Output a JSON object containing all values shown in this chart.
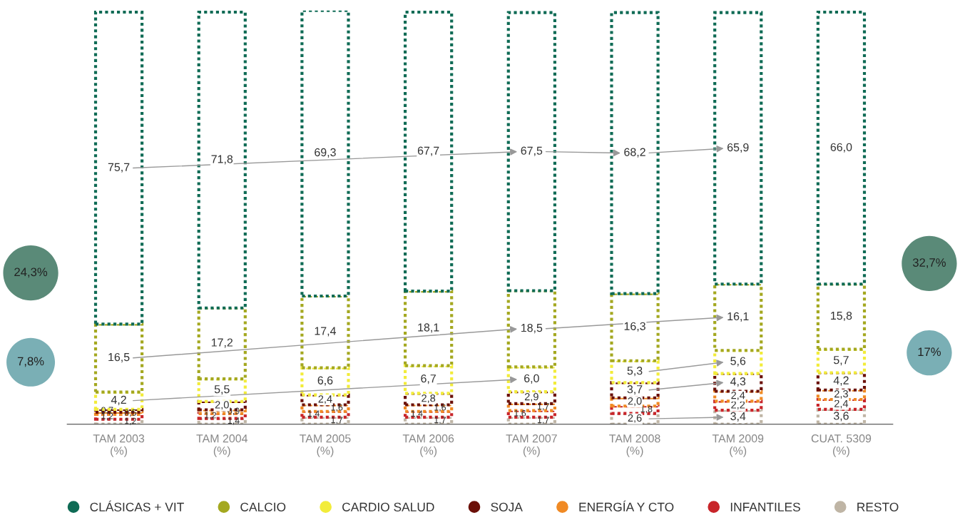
{
  "chart_data": {
    "type": "bar",
    "stacked": true,
    "legend": "bottom",
    "grid": false,
    "categories": [
      "TAM 2003\n(%)",
      "TAM 2004\n(%)",
      "TAM 2005\n(%)",
      "TAM 2006\n(%)",
      "TAM 2007\n(%)",
      "TAM 2008\n(%)",
      "TAM 2009\n(%)",
      "CUAT. 5309\n(%)"
    ],
    "series": [
      {
        "name": "RESTO",
        "color": "#bfb5a5",
        "values": [
          1.2,
          1.4,
          1.7,
          1.7,
          1.7,
          2.6,
          3.4,
          3.6
        ],
        "value_labels": [
          "1,2",
          "1,4",
          "1,7",
          "1,7",
          "1,7",
          "2,6",
          "3,4",
          "3,6"
        ]
      },
      {
        "name": "INFANTILES",
        "color": "#c8252a",
        "values": [
          1.2,
          1.2,
          1.4,
          1.4,
          1.6,
          1.8,
          2.2,
          2.4
        ],
        "value_labels": [
          "1,2",
          "1,2",
          "1,4",
          "1,4",
          "1,6",
          "1,8",
          "2,2",
          "2,4"
        ]
      },
      {
        "name": "ENERGÍA Y CTO",
        "color": "#f08a24",
        "values": [
          0.5,
          0.9,
          1.6,
          1.6,
          1.7,
          2.0,
          2.4,
          2.3
        ],
        "value_labels": [
          "0,5",
          "0,9",
          "1,6",
          "1,6",
          "1,7",
          "2,0",
          "2,4",
          "2,3"
        ]
      },
      {
        "name": "SOJA",
        "color": "#6b1008",
        "values": [
          0.7,
          2.0,
          2.4,
          2.8,
          2.9,
          3.7,
          4.3,
          4.2
        ],
        "value_labels": [
          "0,7",
          "2,0",
          "2,4",
          "2,8",
          "2,9",
          "3,7",
          "4,3",
          "4,2"
        ]
      },
      {
        "name": "CARDIO SALUD",
        "color": "#f2ec3a",
        "values": [
          4.2,
          5.5,
          6.6,
          6.7,
          6.0,
          5.3,
          5.6,
          5.7
        ],
        "value_labels": [
          "4,2",
          "5,5",
          "6,6",
          "6,7",
          "6,0",
          "5,3",
          "5,6",
          "5,7"
        ]
      },
      {
        "name": "CALCIO",
        "color": "#a4a820",
        "values": [
          16.5,
          17.2,
          17.4,
          18.1,
          18.5,
          16.3,
          16.1,
          15.8
        ],
        "value_labels": [
          "16,5",
          "17,2",
          "17,4",
          "18,1",
          "18,5",
          "16,3",
          "16,1",
          "15,8"
        ]
      },
      {
        "name": "CLÁSICAS + VIT",
        "color": "#0f6b55",
        "values": [
          75.7,
          71.8,
          69.3,
          67.7,
          67.5,
          68.2,
          65.9,
          66.0
        ],
        "value_labels": [
          "75,7",
          "71,8",
          "69,3",
          "67,7",
          "67,5",
          "68,2",
          "65,9",
          "66,0"
        ]
      }
    ],
    "annotations": [
      "24,3%",
      "7,8%",
      "32,7%",
      "17%"
    ]
  }
}
